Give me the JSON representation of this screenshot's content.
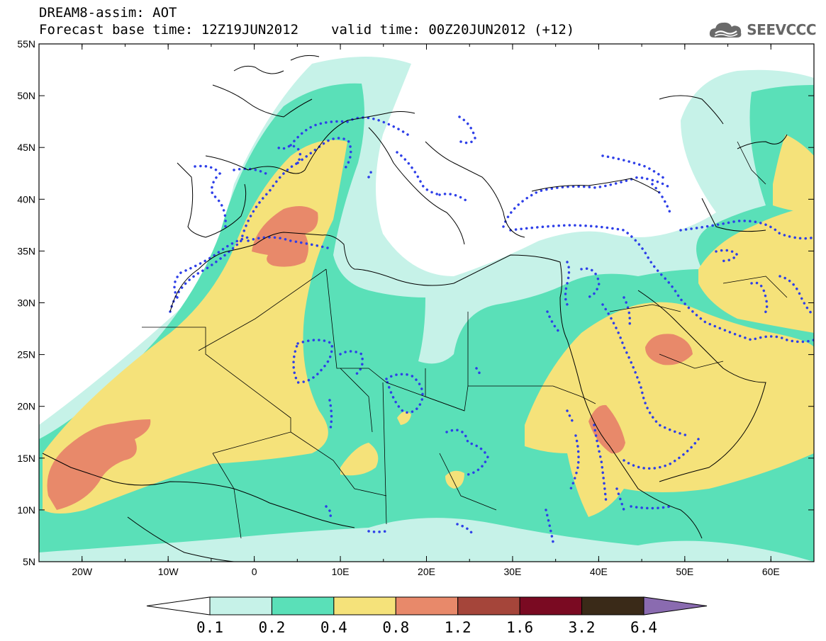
{
  "header": {
    "line1": "DREAM8-assim: AOT",
    "base_time_text": "Forecast base time: 12Z19JUN2012",
    "valid_time_text": "valid time: 00Z20JUN2012 (+12)"
  },
  "logo": {
    "text": "SEEVCCC",
    "icon": "cloud-icon"
  },
  "axes": {
    "lat_labels": [
      "55N",
      "50N",
      "45N",
      "40N",
      "35N",
      "30N",
      "25N",
      "20N",
      "15N",
      "10N",
      "5N"
    ],
    "lon_labels": [
      "20W",
      "10W",
      "0",
      "10E",
      "20E",
      "30E",
      "40E",
      "50E",
      "60E"
    ],
    "lon_range": [
      -25,
      65
    ],
    "lat_range": [
      5,
      55
    ]
  },
  "colorbar": {
    "labels": [
      "0.1",
      "0.2",
      "0.4",
      "0.8",
      "1.2",
      "1.6",
      "3.2",
      "6.4"
    ],
    "colors": [
      "#c6f2e8",
      "#5ae0b8",
      "#f5e27a",
      "#e8896a",
      "#a5453a",
      "#7a0a22",
      "#3a2a18",
      "#8a6bb0"
    ],
    "under_color": "#ffffff",
    "over_color": "#8a6bb0"
  },
  "layers": {
    "aot_colors": {
      "c01": "#c6f2e8",
      "c02": "#5ae0b8",
      "c04": "#f5e27a",
      "c08": "#e8896a"
    },
    "contour_color": "#2e3fe8",
    "coastline_color": "#000000"
  }
}
